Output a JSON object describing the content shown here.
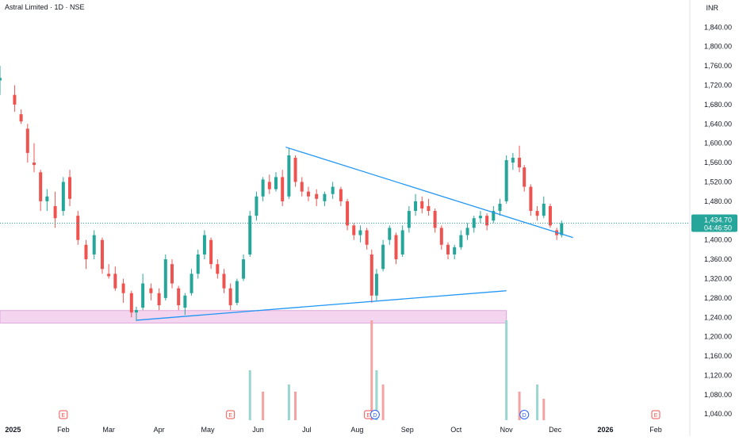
{
  "header": {
    "title": "Astral Limited · 1D · NSE",
    "currency": "INR"
  },
  "price_badge": {
    "price": "1,434.70",
    "countdown": "04:46:50",
    "color": "#26a69a"
  },
  "colors": {
    "up": "#26a69a",
    "down": "#ef5350",
    "trendline": "#2196f3",
    "zone_fill": "#f3d5ef",
    "zone_stroke": "#e1a8dd",
    "volume_up": "#9ad5cf",
    "volume_down": "#f4a3a3"
  },
  "events": [
    {
      "label": "E",
      "date": "2025-02-01"
    },
    {
      "label": "E",
      "date": "2025-05-15"
    },
    {
      "label": "E",
      "date": "2025-08-08"
    },
    {
      "label": "D",
      "date": "2025-08-12"
    },
    {
      "label": "D",
      "date": "2025-11-12"
    },
    {
      "label": "E",
      "date": "2026-02-01"
    }
  ],
  "chart_data": {
    "type": "candlestick",
    "symbol": "Astral Limited",
    "interval": "1D",
    "exchange": "NSE",
    "x_range": [
      "2024-12-24",
      "2026-02-22"
    ],
    "x_ticks": [
      {
        "date": "2025-01-01",
        "label": "2025"
      },
      {
        "date": "2025-02-01",
        "label": "Feb"
      },
      {
        "date": "2025-03-01",
        "label": "Mar"
      },
      {
        "date": "2025-04-01",
        "label": "Apr"
      },
      {
        "date": "2025-05-01",
        "label": "May"
      },
      {
        "date": "2025-06-01",
        "label": "Jun"
      },
      {
        "date": "2025-07-01",
        "label": "Jul"
      },
      {
        "date": "2025-08-01",
        "label": "Aug"
      },
      {
        "date": "2025-09-01",
        "label": "Sep"
      },
      {
        "date": "2025-10-01",
        "label": "Oct"
      },
      {
        "date": "2025-11-01",
        "label": "Nov"
      },
      {
        "date": "2025-12-01",
        "label": "Dec"
      },
      {
        "date": "2026-01-01",
        "label": "2026"
      },
      {
        "date": "2026-02-01",
        "label": "Feb"
      }
    ],
    "y_range": [
      1024,
      1870
    ],
    "y_ticks": [
      1040,
      1080,
      1120,
      1160,
      1200,
      1240,
      1280,
      1320,
      1360,
      1400,
      1440,
      1480,
      1520,
      1560,
      1600,
      1640,
      1680,
      1720,
      1760,
      1800,
      1840
    ],
    "last_price": 1434.7,
    "candles": [
      {
        "date": "2024-12-24",
        "o": 1730,
        "h": 1760,
        "l": 1700,
        "c": 1735
      },
      {
        "date": "2025-01-02",
        "o": 1700,
        "h": 1720,
        "l": 1665,
        "c": 1680
      },
      {
        "date": "2025-01-06",
        "o": 1660,
        "h": 1670,
        "l": 1640,
        "c": 1645
      },
      {
        "date": "2025-01-10",
        "o": 1630,
        "h": 1640,
        "l": 1560,
        "c": 1580
      },
      {
        "date": "2025-01-14",
        "o": 1560,
        "h": 1600,
        "l": 1540,
        "c": 1555
      },
      {
        "date": "2025-01-18",
        "o": 1540,
        "h": 1545,
        "l": 1460,
        "c": 1480
      },
      {
        "date": "2025-01-22",
        "o": 1480,
        "h": 1505,
        "l": 1460,
        "c": 1490
      },
      {
        "date": "2025-01-27",
        "o": 1470,
        "h": 1500,
        "l": 1425,
        "c": 1445
      },
      {
        "date": "2025-02-01",
        "o": 1460,
        "h": 1530,
        "l": 1450,
        "c": 1520
      },
      {
        "date": "2025-02-05",
        "o": 1530,
        "h": 1545,
        "l": 1470,
        "c": 1485
      },
      {
        "date": "2025-02-10",
        "o": 1450,
        "h": 1460,
        "l": 1390,
        "c": 1400
      },
      {
        "date": "2025-02-15",
        "o": 1390,
        "h": 1400,
        "l": 1340,
        "c": 1360
      },
      {
        "date": "2025-02-20",
        "o": 1370,
        "h": 1420,
        "l": 1360,
        "c": 1410
      },
      {
        "date": "2025-02-25",
        "o": 1400,
        "h": 1405,
        "l": 1330,
        "c": 1340
      },
      {
        "date": "2025-03-01",
        "o": 1330,
        "h": 1350,
        "l": 1320,
        "c": 1325
      },
      {
        "date": "2025-03-05",
        "o": 1330,
        "h": 1345,
        "l": 1295,
        "c": 1300
      },
      {
        "date": "2025-03-10",
        "o": 1310,
        "h": 1320,
        "l": 1270,
        "c": 1290
      },
      {
        "date": "2025-03-15",
        "o": 1290,
        "h": 1295,
        "l": 1240,
        "c": 1250
      },
      {
        "date": "2025-03-18",
        "o": 1250,
        "h": 1262,
        "l": 1232,
        "c": 1255
      },
      {
        "date": "2025-03-22",
        "o": 1260,
        "h": 1330,
        "l": 1255,
        "c": 1310
      },
      {
        "date": "2025-03-27",
        "o": 1300,
        "h": 1310,
        "l": 1275,
        "c": 1290
      },
      {
        "date": "2025-04-01",
        "o": 1290,
        "h": 1300,
        "l": 1255,
        "c": 1265
      },
      {
        "date": "2025-04-05",
        "o": 1280,
        "h": 1370,
        "l": 1275,
        "c": 1360
      },
      {
        "date": "2025-04-09",
        "o": 1350,
        "h": 1360,
        "l": 1300,
        "c": 1310
      },
      {
        "date": "2025-04-13",
        "o": 1300,
        "h": 1305,
        "l": 1255,
        "c": 1265
      },
      {
        "date": "2025-04-17",
        "o": 1260,
        "h": 1290,
        "l": 1245,
        "c": 1285
      },
      {
        "date": "2025-04-21",
        "o": 1290,
        "h": 1340,
        "l": 1285,
        "c": 1330
      },
      {
        "date": "2025-04-25",
        "o": 1330,
        "h": 1380,
        "l": 1320,
        "c": 1370
      },
      {
        "date": "2025-04-29",
        "o": 1370,
        "h": 1420,
        "l": 1360,
        "c": 1410
      },
      {
        "date": "2025-05-03",
        "o": 1400,
        "h": 1405,
        "l": 1340,
        "c": 1350
      },
      {
        "date": "2025-05-07",
        "o": 1350,
        "h": 1360,
        "l": 1320,
        "c": 1330
      },
      {
        "date": "2025-05-11",
        "o": 1330,
        "h": 1340,
        "l": 1290,
        "c": 1300
      },
      {
        "date": "2025-05-15",
        "o": 1300,
        "h": 1310,
        "l": 1255,
        "c": 1265
      },
      {
        "date": "2025-05-19",
        "o": 1270,
        "h": 1320,
        "l": 1265,
        "c": 1315
      },
      {
        "date": "2025-05-23",
        "o": 1320,
        "h": 1370,
        "l": 1315,
        "c": 1360
      },
      {
        "date": "2025-05-27",
        "o": 1370,
        "h": 1460,
        "l": 1365,
        "c": 1450
      },
      {
        "date": "2025-05-31",
        "o": 1450,
        "h": 1500,
        "l": 1440,
        "c": 1490
      },
      {
        "date": "2025-06-04",
        "o": 1490,
        "h": 1530,
        "l": 1480,
        "c": 1525
      },
      {
        "date": "2025-06-08",
        "o": 1520,
        "h": 1535,
        "l": 1495,
        "c": 1505
      },
      {
        "date": "2025-06-12",
        "o": 1505,
        "h": 1540,
        "l": 1500,
        "c": 1530
      },
      {
        "date": "2025-06-16",
        "o": 1530,
        "h": 1545,
        "l": 1470,
        "c": 1480
      },
      {
        "date": "2025-06-20",
        "o": 1490,
        "h": 1590,
        "l": 1485,
        "c": 1575
      },
      {
        "date": "2025-06-24",
        "o": 1570,
        "h": 1575,
        "l": 1510,
        "c": 1520
      },
      {
        "date": "2025-06-28",
        "o": 1520,
        "h": 1530,
        "l": 1490,
        "c": 1500
      },
      {
        "date": "2025-07-02",
        "o": 1500,
        "h": 1510,
        "l": 1480,
        "c": 1490
      },
      {
        "date": "2025-07-07",
        "o": 1495,
        "h": 1505,
        "l": 1470,
        "c": 1485
      },
      {
        "date": "2025-07-12",
        "o": 1480,
        "h": 1500,
        "l": 1470,
        "c": 1495
      },
      {
        "date": "2025-07-17",
        "o": 1495,
        "h": 1520,
        "l": 1485,
        "c": 1510
      },
      {
        "date": "2025-07-22",
        "o": 1505,
        "h": 1510,
        "l": 1470,
        "c": 1480
      },
      {
        "date": "2025-07-26",
        "o": 1480,
        "h": 1485,
        "l": 1420,
        "c": 1430
      },
      {
        "date": "2025-07-30",
        "o": 1430,
        "h": 1435,
        "l": 1400,
        "c": 1410
      },
      {
        "date": "2025-08-03",
        "o": 1410,
        "h": 1430,
        "l": 1395,
        "c": 1420
      },
      {
        "date": "2025-08-07",
        "o": 1420,
        "h": 1425,
        "l": 1380,
        "c": 1390
      },
      {
        "date": "2025-08-10",
        "o": 1370,
        "h": 1380,
        "l": 1270,
        "c": 1285
      },
      {
        "date": "2025-08-13",
        "o": 1285,
        "h": 1340,
        "l": 1275,
        "c": 1330
      },
      {
        "date": "2025-08-17",
        "o": 1340,
        "h": 1400,
        "l": 1335,
        "c": 1390
      },
      {
        "date": "2025-08-21",
        "o": 1400,
        "h": 1430,
        "l": 1390,
        "c": 1425
      },
      {
        "date": "2025-08-25",
        "o": 1410,
        "h": 1415,
        "l": 1350,
        "c": 1360
      },
      {
        "date": "2025-08-29",
        "o": 1370,
        "h": 1430,
        "l": 1365,
        "c": 1420
      },
      {
        "date": "2025-09-02",
        "o": 1425,
        "h": 1470,
        "l": 1415,
        "c": 1460
      },
      {
        "date": "2025-09-06",
        "o": 1460,
        "h": 1495,
        "l": 1450,
        "c": 1480
      },
      {
        "date": "2025-09-10",
        "o": 1480,
        "h": 1490,
        "l": 1455,
        "c": 1465
      },
      {
        "date": "2025-09-14",
        "o": 1470,
        "h": 1485,
        "l": 1450,
        "c": 1460
      },
      {
        "date": "2025-09-18",
        "o": 1460,
        "h": 1465,
        "l": 1415,
        "c": 1425
      },
      {
        "date": "2025-09-22",
        "o": 1425,
        "h": 1430,
        "l": 1380,
        "c": 1390
      },
      {
        "date": "2025-09-26",
        "o": 1390,
        "h": 1395,
        "l": 1360,
        "c": 1370
      },
      {
        "date": "2025-09-30",
        "o": 1370,
        "h": 1390,
        "l": 1360,
        "c": 1385
      },
      {
        "date": "2025-10-04",
        "o": 1385,
        "h": 1420,
        "l": 1380,
        "c": 1410
      },
      {
        "date": "2025-10-08",
        "o": 1410,
        "h": 1435,
        "l": 1400,
        "c": 1425
      },
      {
        "date": "2025-10-12",
        "o": 1425,
        "h": 1450,
        "l": 1415,
        "c": 1445
      },
      {
        "date": "2025-10-16",
        "o": 1445,
        "h": 1460,
        "l": 1435,
        "c": 1450
      },
      {
        "date": "2025-10-20",
        "o": 1450,
        "h": 1455,
        "l": 1420,
        "c": 1430
      },
      {
        "date": "2025-10-24",
        "o": 1440,
        "h": 1470,
        "l": 1435,
        "c": 1460
      },
      {
        "date": "2025-10-28",
        "o": 1460,
        "h": 1485,
        "l": 1450,
        "c": 1475
      },
      {
        "date": "2025-11-01",
        "o": 1480,
        "h": 1575,
        "l": 1475,
        "c": 1565
      },
      {
        "date": "2025-11-05",
        "o": 1560,
        "h": 1580,
        "l": 1545,
        "c": 1570
      },
      {
        "date": "2025-11-09",
        "o": 1570,
        "h": 1595,
        "l": 1540,
        "c": 1550
      },
      {
        "date": "2025-11-12",
        "o": 1550,
        "h": 1555,
        "l": 1500,
        "c": 1510
      },
      {
        "date": "2025-11-16",
        "o": 1510,
        "h": 1515,
        "l": 1450,
        "c": 1460
      },
      {
        "date": "2025-11-20",
        "o": 1460,
        "h": 1470,
        "l": 1440,
        "c": 1450
      },
      {
        "date": "2025-11-24",
        "o": 1450,
        "h": 1490,
        "l": 1445,
        "c": 1475
      },
      {
        "date": "2025-11-28",
        "o": 1470,
        "h": 1475,
        "l": 1425,
        "c": 1430
      },
      {
        "date": "2025-12-02",
        "o": 1420,
        "h": 1425,
        "l": 1400,
        "c": 1410
      },
      {
        "date": "2025-12-05",
        "o": 1410,
        "h": 1440,
        "l": 1405,
        "c": 1434.7
      }
    ],
    "volume": [
      {
        "date": "2025-05-27",
        "v": 7,
        "dir": "up"
      },
      {
        "date": "2025-06-04",
        "v": 4,
        "dir": "down"
      },
      {
        "date": "2025-06-20",
        "v": 5,
        "dir": "up"
      },
      {
        "date": "2025-06-24",
        "v": 4,
        "dir": "down"
      },
      {
        "date": "2025-08-10",
        "v": 14,
        "dir": "down"
      },
      {
        "date": "2025-08-13",
        "v": 7,
        "dir": "up"
      },
      {
        "date": "2025-08-17",
        "v": 5,
        "dir": "down"
      },
      {
        "date": "2025-11-01",
        "v": 14,
        "dir": "up"
      },
      {
        "date": "2025-11-09",
        "v": 4,
        "dir": "down"
      },
      {
        "date": "2025-11-20",
        "v": 5,
        "dir": "up"
      },
      {
        "date": "2025-11-24",
        "v": 3,
        "dir": "down"
      }
    ],
    "annotations": {
      "descending_trendline": {
        "from": {
          "date": "2025-06-18",
          "price": 1592
        },
        "to": {
          "date": "2025-12-12",
          "price": 1405
        }
      },
      "ascending_trendline": {
        "from": {
          "date": "2025-03-18",
          "price": 1234
        },
        "to": {
          "date": "2025-11-01",
          "price": 1295
        }
      },
      "support_zone": {
        "from_date": "2024-12-24",
        "to_date": "2025-11-01",
        "price_low": 1228,
        "price_high": 1254
      }
    }
  }
}
